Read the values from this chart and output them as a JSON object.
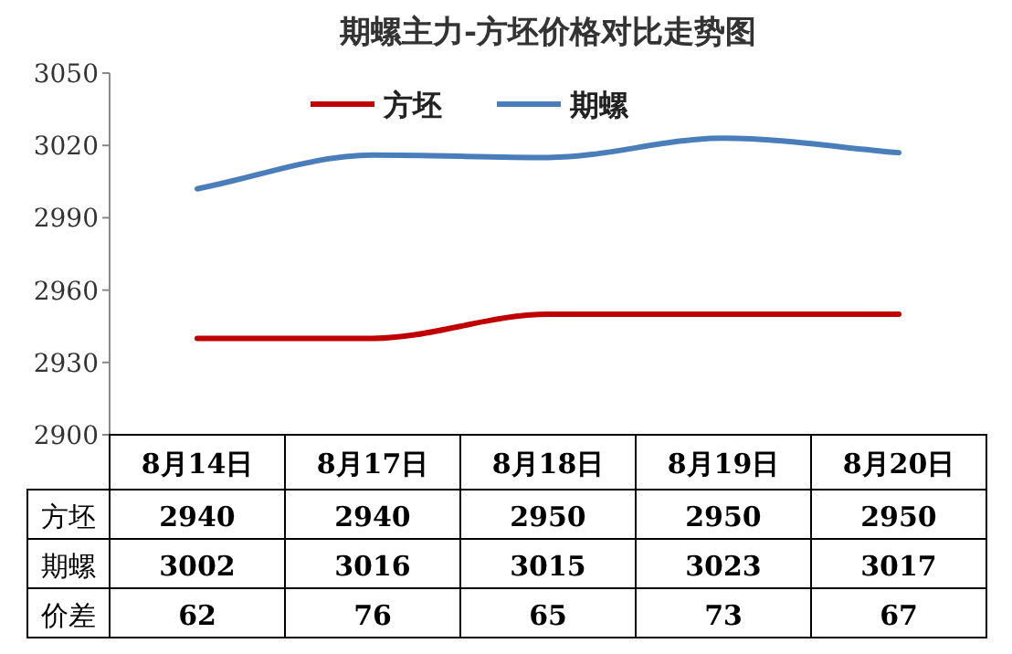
{
  "chart_data": {
    "type": "line",
    "title": "期螺主力-方坯价格对比走势图",
    "categories": [
      "8月14日",
      "8月17日",
      "8月18日",
      "8月19日",
      "8月20日"
    ],
    "series": [
      {
        "name": "方坯",
        "color": "#c00000",
        "values": [
          2940,
          2940,
          2950,
          2950,
          2950
        ]
      },
      {
        "name": "期螺",
        "color": "#4a7ebb",
        "values": [
          3002,
          3016,
          3015,
          3023,
          3017
        ]
      }
    ],
    "annotations": [
      "价差",
      "62",
      "76",
      "65",
      "73",
      "67"
    ],
    "ylim": [
      2900,
      3050
    ],
    "yticks": [
      2900,
      2930,
      2960,
      2990,
      3020,
      3050
    ],
    "data_labels": true,
    "legend": "top",
    "grid": false
  }
}
